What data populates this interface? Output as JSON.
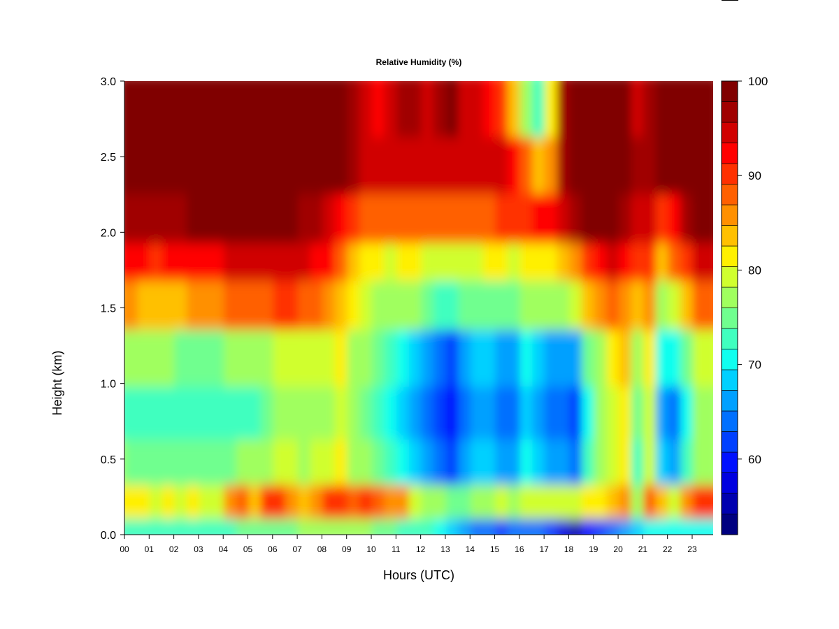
{
  "chart_data": {
    "type": "heatmap",
    "title": "Relative Humidity (%)",
    "xlabel": "Hours (UTC)",
    "ylabel": "Height (km)",
    "xlim": [
      0,
      23.85
    ],
    "ylim": [
      0,
      3
    ],
    "x_ticks": [
      "00",
      "01",
      "02",
      "03",
      "04",
      "05",
      "06",
      "07",
      "08",
      "09",
      "10",
      "11",
      "12",
      "13",
      "14",
      "15",
      "16",
      "17",
      "18",
      "19",
      "20",
      "21",
      "22",
      "23"
    ],
    "y_ticks": [
      "0.0",
      "0.5",
      "1.0",
      "1.5",
      "2.0",
      "2.5",
      "3.0"
    ],
    "y_tick_values": [
      0,
      0.5,
      1.0,
      1.5,
      2.0,
      2.5,
      3.0
    ],
    "colorbar": {
      "range": [
        52,
        100
      ],
      "ticks": [
        "100",
        "90",
        "80",
        "70",
        "60"
      ],
      "tick_values": [
        100,
        90,
        80,
        70,
        60
      ],
      "colors": [
        "#000080",
        "#0000B0",
        "#0000E0",
        "#0010FF",
        "#0040FF",
        "#0070FF",
        "#00A0FF",
        "#00D0FF",
        "#10FFEF",
        "#40FFBF",
        "#70FF8F",
        "#A0FF5F",
        "#D0FF2F",
        "#FFF000",
        "#FFC000",
        "#FF9000",
        "#FF6000",
        "#FF3000",
        "#FF0000",
        "#D00000",
        "#A00000",
        "#800000"
      ]
    },
    "height_levels_km": [
      0.05,
      0.25,
      0.5,
      0.85,
      1.2,
      1.6,
      1.85,
      2.1,
      2.5,
      2.85
    ],
    "hours": [
      0,
      0.5,
      1,
      1.5,
      2,
      2.5,
      3,
      3.5,
      4,
      4.5,
      5,
      5.5,
      6,
      6.5,
      7,
      7.5,
      8,
      8.5,
      9,
      9.5,
      10,
      10.5,
      11,
      11.5,
      12,
      12.5,
      13,
      13.5,
      14,
      14.5,
      15,
      15.5,
      16,
      16.5,
      17,
      17.5,
      18,
      18.5,
      19,
      19.5,
      20,
      20.5,
      21,
      21.5,
      22,
      22.5,
      23,
      23.5
    ],
    "values": [
      [
        72,
        72,
        72,
        72,
        73,
        73,
        73,
        73,
        73,
        73,
        74,
        74,
        74,
        75,
        75,
        76,
        76,
        76,
        76,
        76,
        76,
        75,
        74,
        73,
        73,
        72,
        70,
        68,
        66,
        64,
        64,
        62,
        63,
        63,
        63,
        62,
        58,
        56,
        60,
        62,
        64,
        66,
        68,
        70,
        70,
        70,
        70,
        71
      ],
      [
        82,
        81,
        81,
        80,
        81,
        80,
        81,
        80,
        80,
        85,
        88,
        84,
        90,
        90,
        86,
        84,
        86,
        90,
        90,
        88,
        90,
        88,
        86,
        86,
        80,
        78,
        76,
        74,
        74,
        76,
        78,
        80,
        78,
        80,
        80,
        80,
        80,
        80,
        82,
        82,
        84,
        86,
        78,
        88,
        84,
        80,
        86,
        90
      ],
      [
        76,
        75,
        75,
        74,
        75,
        74,
        75,
        74,
        74,
        74,
        76,
        76,
        78,
        80,
        80,
        78,
        80,
        80,
        82,
        78,
        76,
        74,
        72,
        70,
        68,
        66,
        64,
        62,
        66,
        68,
        68,
        66,
        66,
        70,
        68,
        66,
        66,
        64,
        72,
        76,
        80,
        82,
        72,
        80,
        68,
        66,
        72,
        78
      ],
      [
        73,
        72,
        72,
        72,
        73,
        72,
        73,
        72,
        72,
        72,
        73,
        73,
        74,
        76,
        78,
        78,
        78,
        78,
        80,
        76,
        74,
        72,
        70,
        68,
        66,
        64,
        62,
        60,
        64,
        66,
        66,
        64,
        64,
        68,
        66,
        64,
        64,
        62,
        70,
        76,
        80,
        82,
        74,
        80,
        66,
        64,
        70,
        76
      ],
      [
        77,
        76,
        76,
        76,
        76,
        75,
        75,
        75,
        75,
        76,
        77,
        77,
        78,
        80,
        80,
        80,
        80,
        80,
        82,
        78,
        76,
        74,
        72,
        70,
        68,
        66,
        64,
        62,
        66,
        68,
        68,
        66,
        66,
        70,
        68,
        66,
        66,
        66,
        74,
        78,
        82,
        84,
        78,
        82,
        70,
        70,
        74,
        80
      ],
      [
        86,
        85,
        84,
        83,
        84,
        84,
        86,
        85,
        85,
        87,
        88,
        88,
        88,
        90,
        90,
        89,
        88,
        86,
        84,
        82,
        80,
        78,
        76,
        76,
        76,
        74,
        72,
        72,
        74,
        74,
        74,
        74,
        74,
        76,
        76,
        76,
        78,
        80,
        84,
        86,
        88,
        86,
        84,
        86,
        78,
        80,
        84,
        88
      ],
      [
        93,
        92,
        92,
        91,
        92,
        92,
        93,
        93,
        93,
        94,
        95,
        95,
        95,
        95,
        94,
        94,
        93,
        92,
        88,
        84,
        82,
        82,
        80,
        82,
        82,
        80,
        80,
        80,
        80,
        80,
        82,
        82,
        80,
        82,
        82,
        82,
        84,
        86,
        90,
        92,
        94,
        92,
        90,
        90,
        84,
        88,
        90,
        94
      ],
      [
        97,
        97,
        97,
        96,
        97,
        97,
        98,
        98,
        98,
        99,
        99,
        99,
        99,
        98,
        98,
        97,
        96,
        95,
        92,
        90,
        88,
        88,
        88,
        88,
        88,
        88,
        88,
        88,
        88,
        88,
        88,
        90,
        90,
        90,
        92,
        92,
        94,
        96,
        98,
        98,
        98,
        96,
        94,
        94,
        90,
        92,
        96,
        98
      ],
      [
        99,
        99,
        99,
        99,
        99,
        99,
        100,
        100,
        100,
        100,
        100,
        100,
        100,
        100,
        100,
        100,
        100,
        99,
        98,
        96,
        94,
        94,
        94,
        94,
        94,
        94,
        95,
        94,
        94,
        95,
        94,
        94,
        93,
        88,
        84,
        86,
        96,
        98,
        99,
        99,
        99,
        98,
        96,
        97,
        98,
        99,
        99,
        99
      ],
      [
        100,
        100,
        100,
        100,
        100,
        100,
        100,
        100,
        100,
        100,
        100,
        100,
        100,
        100,
        100,
        100,
        100,
        100,
        99,
        97,
        94,
        92,
        94,
        96,
        96,
        94,
        96,
        98,
        94,
        94,
        92,
        90,
        84,
        76,
        72,
        82,
        96,
        98,
        99,
        100,
        100,
        98,
        94,
        97,
        99,
        100,
        100,
        100
      ]
    ]
  }
}
